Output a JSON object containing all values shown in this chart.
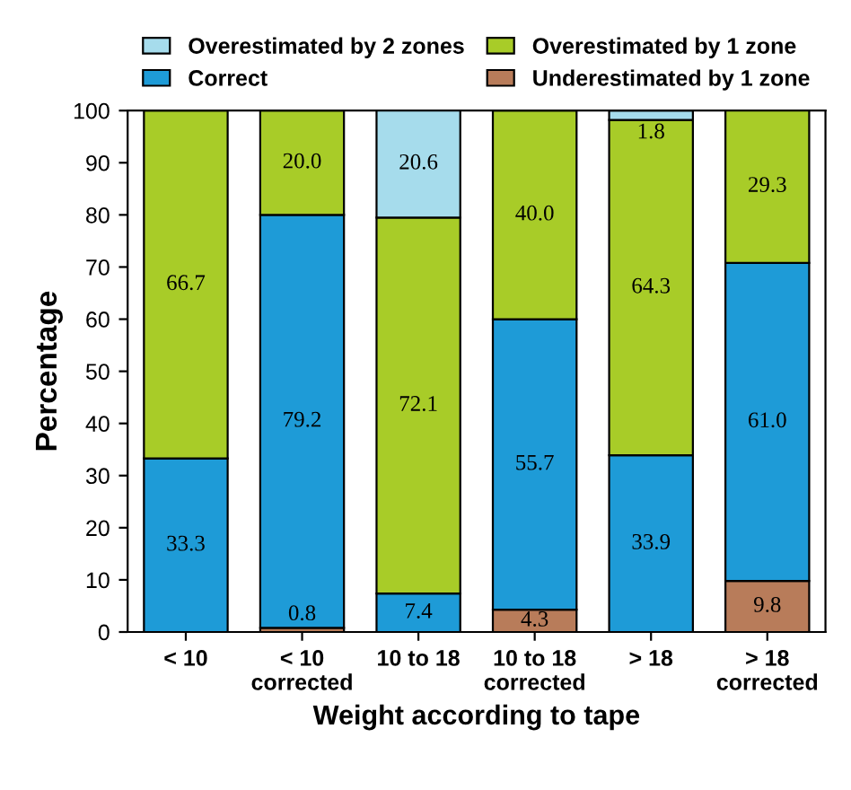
{
  "chart_data": {
    "type": "bar",
    "stacked": true,
    "xlabel": "Weight according to tape",
    "ylabel": "Percentage",
    "categories": [
      "< 10",
      "< 10\ncorrected",
      "10 to 18",
      "10 to 18\ncorrected",
      "> 18",
      "> 18\ncorrected"
    ],
    "series": [
      {
        "name": "Underestimated by 1 zone",
        "color": "#b87c5a",
        "values": [
          null,
          0.8,
          null,
          4.3,
          null,
          9.8
        ],
        "value_labels": [
          null,
          "0.8",
          null,
          "4.3",
          null,
          "9.8"
        ]
      },
      {
        "name": "Correct",
        "color": "#1e9bd7",
        "values": [
          33.3,
          79.2,
          7.4,
          55.7,
          33.9,
          61.0
        ],
        "value_labels": [
          "33.3",
          "79.2",
          "7.4",
          "55.7",
          "33.9",
          "61.0"
        ]
      },
      {
        "name": "Overestimated by 1 zone",
        "color": "#a8cc28",
        "values": [
          66.7,
          20.0,
          72.1,
          40.0,
          64.3,
          29.3
        ],
        "value_labels": [
          "66.7",
          "20.0",
          "72.1",
          "40.0",
          "64.3",
          "29.3"
        ]
      },
      {
        "name": "Overestimated by 2 zones",
        "color": "#a6dcec",
        "values": [
          null,
          null,
          20.6,
          null,
          1.8,
          null
        ],
        "value_labels": [
          null,
          null,
          "20.6",
          null,
          "1.8",
          null
        ]
      }
    ],
    "ylim": [
      0,
      100
    ],
    "yticks": [
      0,
      10,
      20,
      30,
      40,
      50,
      60,
      70,
      80,
      90,
      100
    ],
    "grid": false,
    "legend": "top"
  }
}
